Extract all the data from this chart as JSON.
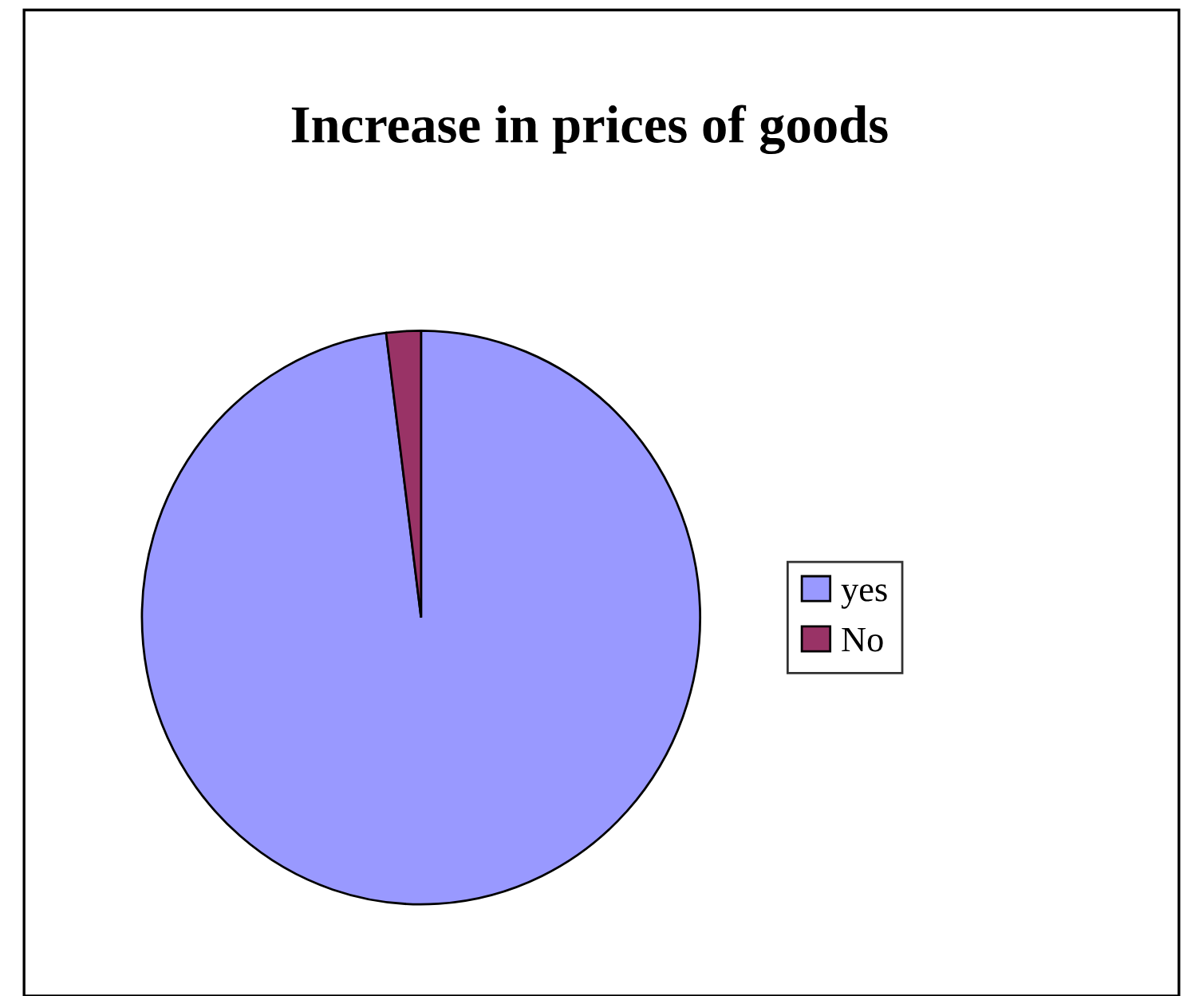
{
  "chart_data": {
    "type": "pie",
    "title": "Increase in prices of goods",
    "categories": [
      "yes",
      "No"
    ],
    "values": [
      98,
      2
    ],
    "colors": [
      "#9999ff",
      "#993366"
    ],
    "legend": "right"
  }
}
